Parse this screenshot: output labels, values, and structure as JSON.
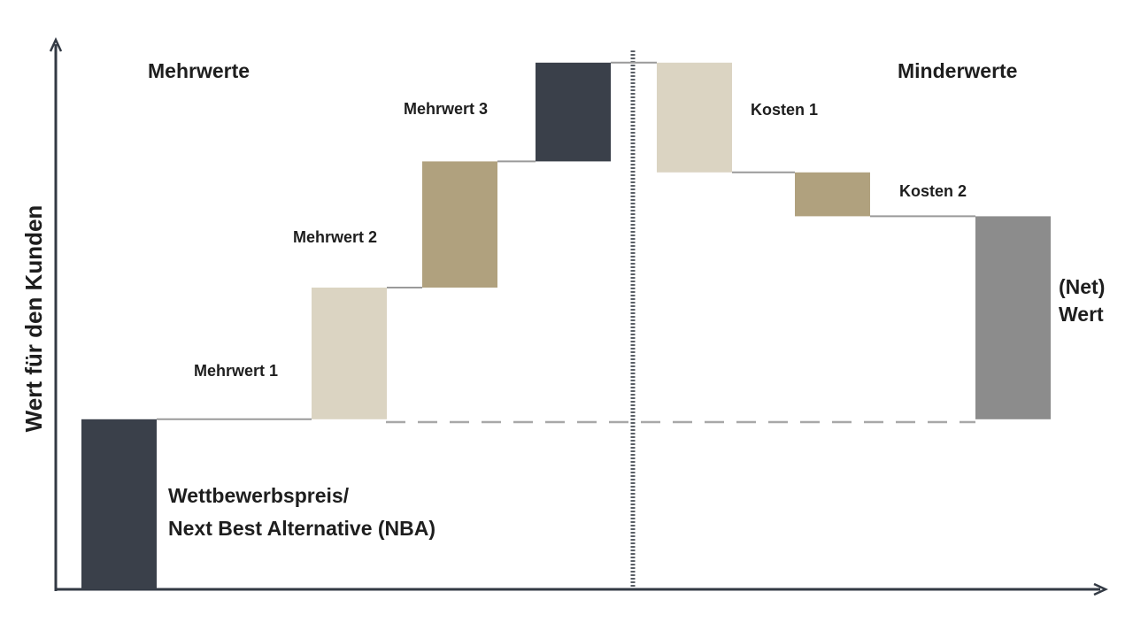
{
  "colors": {
    "dark": "#3a404a",
    "tan": "#b0a17e",
    "light": "#dbd4c2",
    "grey": "#8c8c8c",
    "axis": "#333a44",
    "connector": "#9a9a9a",
    "text": "#1e1e1e"
  },
  "chart_data": {
    "type": "bar",
    "subtype": "waterfall",
    "title": "",
    "ylabel": "Wert für den Kunden",
    "xlabel": "",
    "ylim": [
      0,
      100
    ],
    "grid": false,
    "legend": "none",
    "section_labels": {
      "left": "Mehrwerte",
      "right": "Minderwerte"
    },
    "bars": [
      {
        "key": "nba",
        "label_lines": [
          "Wettbewerbspreis/",
          "Next Best Alternative (NBA)"
        ],
        "base": 0,
        "top": 31,
        "color": "dark"
      },
      {
        "key": "m1",
        "label_lines": [
          "Mehrwert 1"
        ],
        "base": 31,
        "top": 55,
        "color": "light"
      },
      {
        "key": "m2",
        "label_lines": [
          "Mehrwert 2"
        ],
        "base": 55,
        "top": 78,
        "color": "tan"
      },
      {
        "key": "m3",
        "label_lines": [
          "Mehrwert 3"
        ],
        "base": 78,
        "top": 96,
        "color": "dark"
      },
      {
        "key": "k1",
        "label_lines": [
          "Kosten 1"
        ],
        "base": 76,
        "top": 96,
        "color": "light"
      },
      {
        "key": "k2",
        "label_lines": [
          "Kosten 2"
        ],
        "base": 68,
        "top": 76,
        "color": "tan"
      },
      {
        "key": "net",
        "label_lines": [
          "(Net)",
          "Wert"
        ],
        "base": 31,
        "top": 68,
        "color": "grey"
      }
    ]
  }
}
